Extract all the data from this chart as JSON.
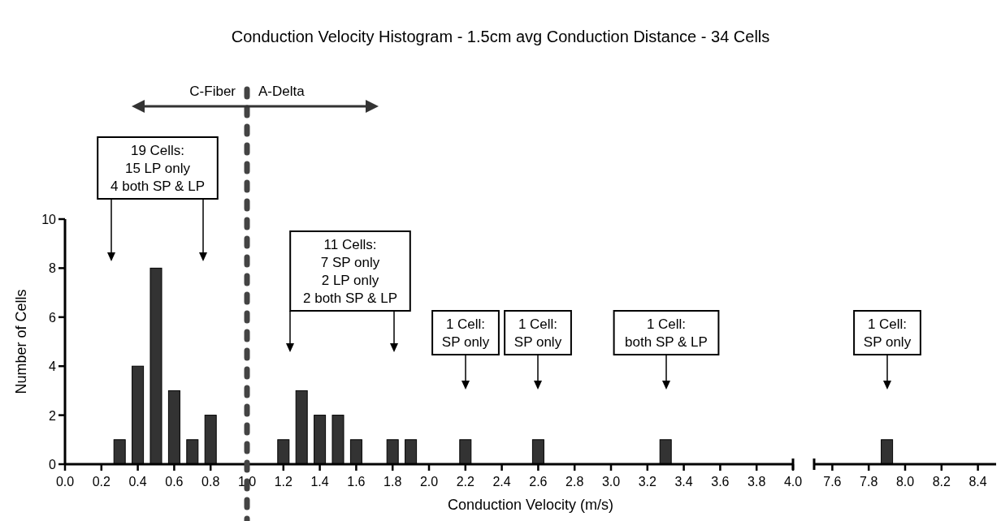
{
  "chart_data": [
    {
      "type": "bar",
      "title": "Conduction Velocity Histogram - 1.5cm avg Conduction Distance - 34 Cells",
      "xlabel": "Conduction Velocity (m/s)",
      "ylabel": "Number of Cells",
      "x": [
        0.3,
        0.4,
        0.5,
        0.6,
        0.7,
        0.8,
        1.2,
        1.3,
        1.4,
        1.5,
        1.6,
        1.8,
        1.9,
        2.2,
        2.6,
        3.3
      ],
      "values": [
        1,
        4,
        8,
        3,
        1,
        2,
        1,
        3,
        2,
        2,
        1,
        1,
        1,
        1,
        1,
        1
      ],
      "color": "#333333",
      "xlim": [
        0,
        4
      ],
      "xticks": [
        {
          "value": 0,
          "label": "0.0"
        },
        0.2,
        0.4,
        0.6,
        0.8,
        {
          "value": 1,
          "label": "1.0"
        },
        1.2,
        1.4,
        1.6,
        1.8,
        {
          "value": 2,
          "label": "2.0"
        },
        2.2,
        2.4,
        2.6,
        2.8,
        {
          "value": 3,
          "label": "3.0"
        },
        3.2,
        3.4,
        3.6,
        3.8,
        {
          "value": 4,
          "label": "4.0"
        }
      ],
      "ylim": [
        0,
        10
      ],
      "yticks": [
        0,
        2,
        4,
        6,
        8,
        10
      ],
      "grid": false,
      "ref_lines": [
        {
          "axis": "x",
          "value": 1,
          "color": "#444444",
          "line_style": "dashed"
        }
      ],
      "annotations": [
        "C-Fiber",
        "A-Delta",
        "19 Cells:\n15 LP only\n4 both SP & LP",
        "11 Cells:\n7 SP only\n2 LP only\n2 both SP & LP",
        "1 Cell:\nSP only",
        "1 Cell:\nSP only",
        "1 Cell:\nboth SP & LP"
      ]
    },
    {
      "type": "bar",
      "x": [
        7.9
      ],
      "values": [
        1
      ],
      "color": "#333333",
      "tick_labels": "x",
      "xlim": [
        7.5,
        8.5
      ],
      "xticks": [
        7.6,
        7.8,
        {
          "value": 8,
          "label": "8.0"
        },
        8.2,
        8.4
      ],
      "ylim": [
        0,
        10
      ],
      "grid": false,
      "annotations": [
        "1 Cell:\nSP only"
      ]
    }
  ]
}
